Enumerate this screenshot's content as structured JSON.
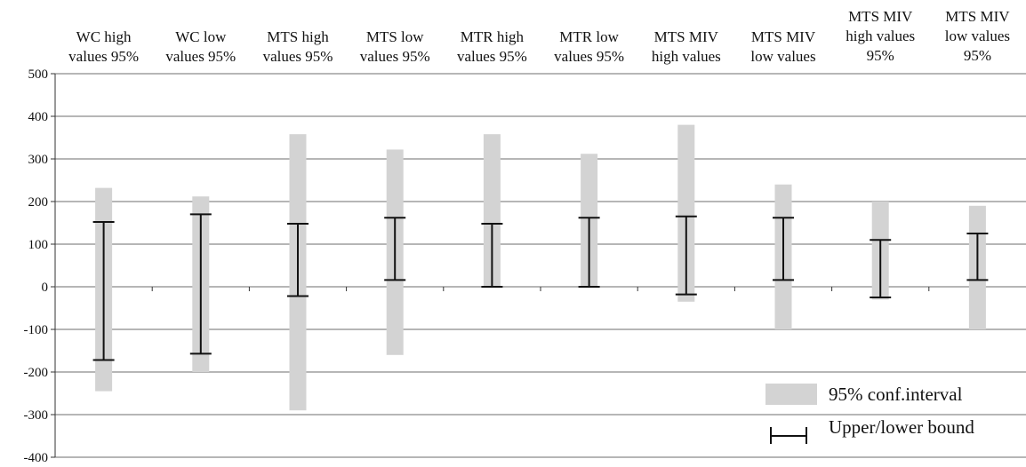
{
  "chart_data": {
    "type": "errorbar",
    "title": "",
    "xlabel": "",
    "ylabel": "",
    "ylim": [
      -400,
      500
    ],
    "yticks": [
      -400,
      -300,
      -200,
      -100,
      0,
      100,
      200,
      300,
      400,
      500
    ],
    "grid": true,
    "legend_position": "bottom-right",
    "legend": [
      {
        "label": "95% conf.interval",
        "swatch": "gray-bar"
      },
      {
        "label": "Upper/lower bound",
        "swatch": "bracket"
      }
    ],
    "categories": [
      [
        "WC high",
        "values  95%"
      ],
      [
        "WC low",
        "values 95%"
      ],
      [
        "MTS high",
        "values 95%"
      ],
      [
        "MTS low",
        "values 95%"
      ],
      [
        "MTR high",
        "values 95%"
      ],
      [
        "MTR low",
        "values 95%"
      ],
      [
        "MTS MIV",
        "high values"
      ],
      [
        "MTS MIV",
        "low values"
      ],
      [
        "MTS MIV",
        "high values",
        "95%"
      ],
      [
        "MTS MIV",
        "low values",
        "95%"
      ]
    ],
    "series": [
      {
        "name": "95% conf.interval",
        "low": [
          -245,
          -200,
          -290,
          -160,
          0,
          0,
          -35,
          -100,
          -30,
          -100
        ],
        "high": [
          232,
          212,
          358,
          322,
          358,
          312,
          380,
          240,
          200,
          190
        ]
      },
      {
        "name": "Upper/lower bound",
        "low": [
          -172,
          -157,
          -22,
          16,
          0,
          0,
          -18,
          16,
          -25,
          16
        ],
        "high": [
          152,
          170,
          148,
          162,
          148,
          162,
          165,
          162,
          110,
          125
        ]
      }
    ],
    "colors": {
      "ci_bar": "#d3d3d3",
      "bound": "#111111",
      "grid": "#6e6e6e",
      "axis": "#333333"
    }
  }
}
